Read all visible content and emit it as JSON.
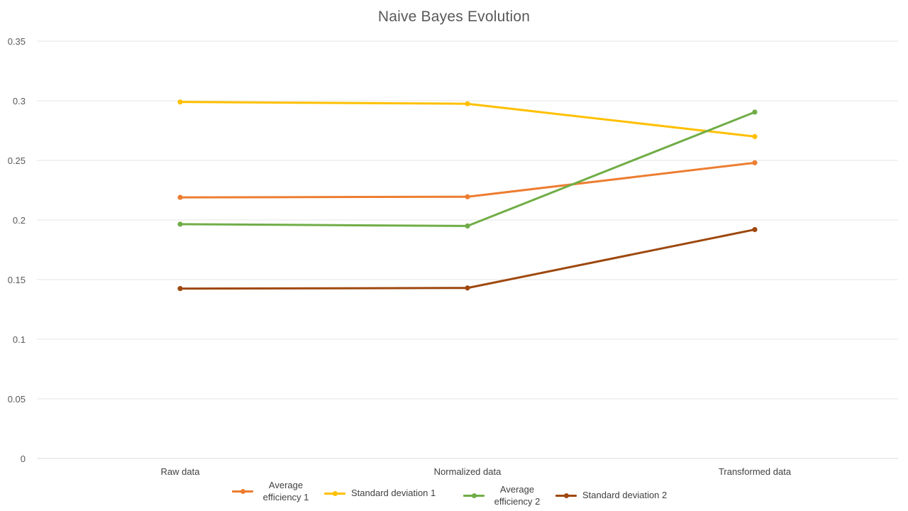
{
  "chart_data": {
    "type": "line",
    "title": "Naive Bayes Evolution",
    "xlabel": "",
    "ylabel": "",
    "categories": [
      "Raw data",
      "Normalized data",
      "Transformed data"
    ],
    "ylim": [
      0,
      0.35
    ],
    "yticks": [
      0,
      0.05,
      0.1,
      0.15,
      0.2,
      0.25,
      0.3,
      0.35
    ],
    "ytick_labels": [
      "0",
      "0.05",
      "0.1",
      "0.15",
      "0.2",
      "0.25",
      "0.3",
      "0.35"
    ],
    "grid": true,
    "legend_position": "bottom",
    "series": [
      {
        "name": "Average efficiency 1",
        "color": "#ED7D31",
        "values": [
          0.219,
          0.2195,
          0.248
        ]
      },
      {
        "name": "Standard deviation 1",
        "color": "#FFC000",
        "values": [
          0.299,
          0.2975,
          0.27
        ]
      },
      {
        "name": "Average efficiency 2",
        "color": "#70AD47",
        "values": [
          0.1965,
          0.195,
          0.2905
        ]
      },
      {
        "name": "Standard deviation 2",
        "color": "#9E480E",
        "values": [
          0.1425,
          0.143,
          0.192
        ]
      }
    ]
  }
}
